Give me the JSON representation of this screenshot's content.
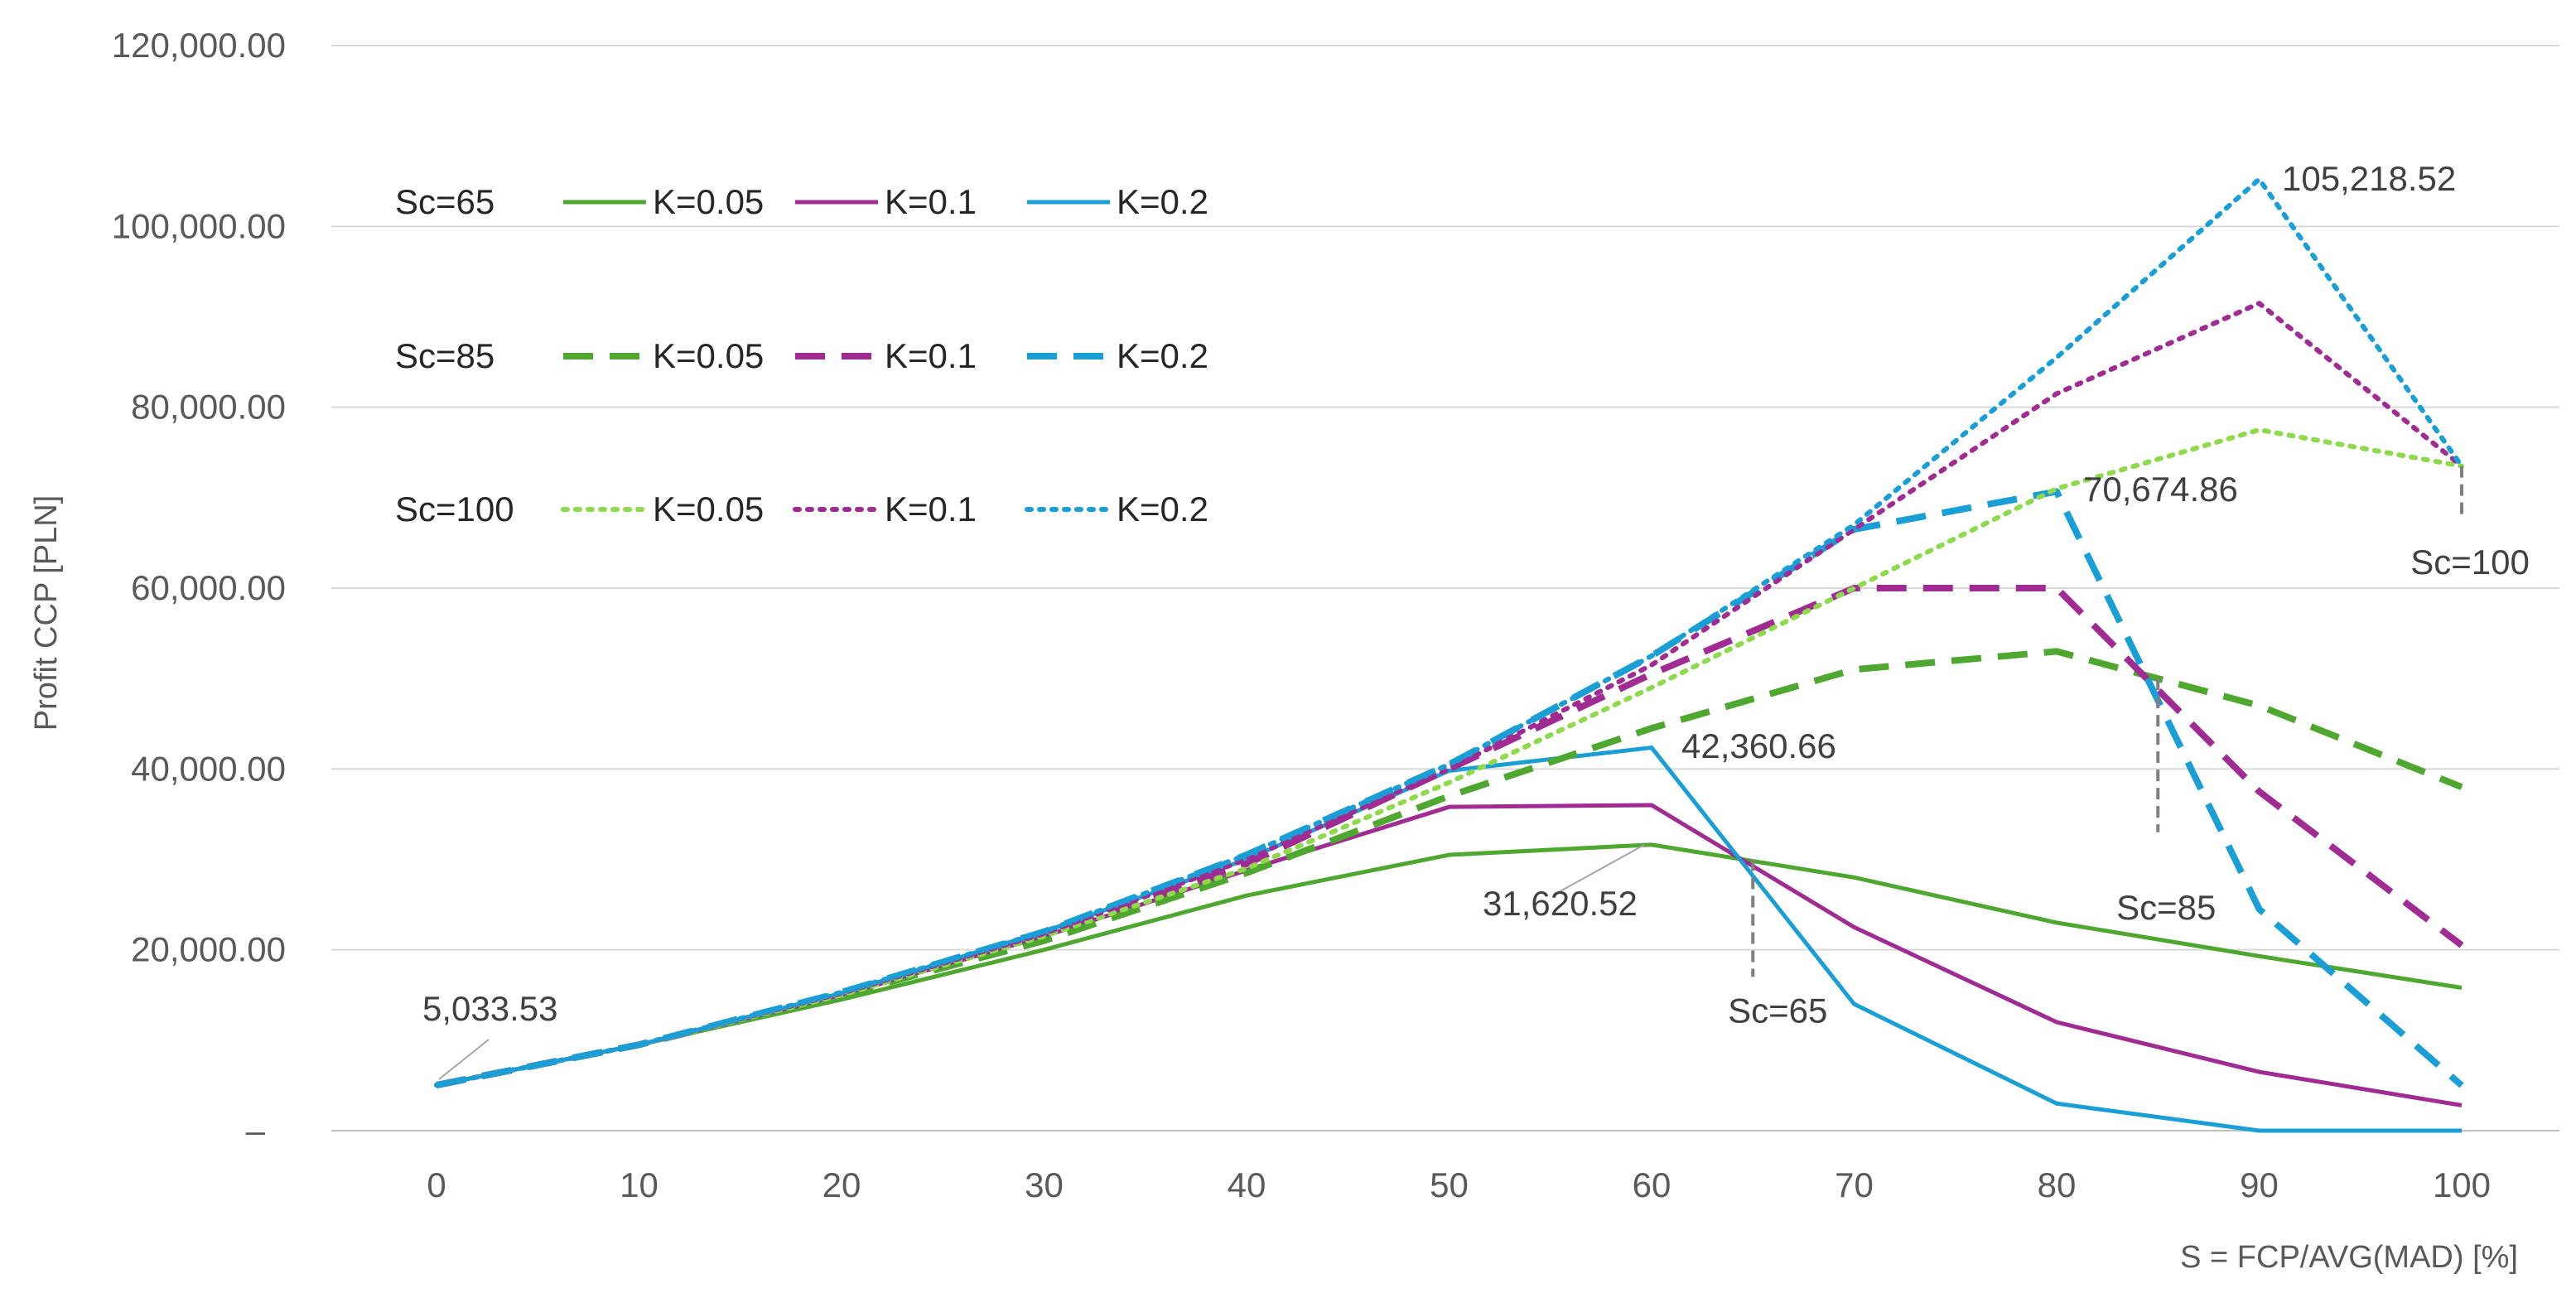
{
  "chart_data": {
    "type": "line",
    "title": "",
    "xlabel": "S = FCP/AVG(MAD) [%]",
    "ylabel": "Profit CCP [PLN]",
    "x": [
      0,
      10,
      20,
      30,
      40,
      50,
      60,
      70,
      80,
      90,
      100
    ],
    "ylim": [
      0,
      120000
    ],
    "y_ticks": [
      {
        "value": 0,
        "label": "–"
      },
      {
        "value": 20000,
        "label": "20,000.00"
      },
      {
        "value": 40000,
        "label": "40,000.00"
      },
      {
        "value": 60000,
        "label": "60,000.00"
      },
      {
        "value": 80000,
        "label": "80,000.00"
      },
      {
        "value": 100000,
        "label": "100,000.00"
      },
      {
        "value": 120000,
        "label": "120,000.00"
      }
    ],
    "x_ticks": [
      "0",
      "10",
      "20",
      "30",
      "40",
      "50",
      "60",
      "70",
      "80",
      "90",
      "100"
    ],
    "grid": "horizontal",
    "legend": {
      "placement": "top-left",
      "groups": [
        {
          "label": "Sc=65",
          "entries": [
            "K=0.05",
            "K=0.1",
            "K=0.2"
          ]
        },
        {
          "label": "Sc=85",
          "entries": [
            "K=0.05",
            "K=0.1",
            "K=0.2"
          ]
        },
        {
          "label": "Sc=100",
          "entries": [
            "K=0.05",
            "K=0.1",
            "K=0.2"
          ]
        }
      ]
    },
    "series": [
      {
        "name": "Sc=65 K=0.05",
        "group": "Sc=65",
        "k": "K=0.05",
        "color": "#4ea72e",
        "style": "solid",
        "values": [
          5033.53,
          9500,
          14500,
          20000,
          26000,
          30500,
          31620.52,
          28000,
          23000,
          19300,
          15800
        ]
      },
      {
        "name": "Sc=65 K=0.1",
        "group": "Sc=65",
        "k": "K=0.1",
        "color": "#a02b93",
        "style": "solid",
        "values": [
          5033.53,
          9500,
          15000,
          21500,
          28800,
          35800,
          36000,
          22500,
          12000,
          6500,
          2800
        ]
      },
      {
        "name": "Sc=65 K=0.2",
        "group": "Sc=65",
        "k": "K=0.2",
        "color": "#1a9ed6",
        "style": "solid",
        "values": [
          5033.53,
          9500,
          15200,
          22000,
          30000,
          39800,
          42360.66,
          14000,
          3000,
          0,
          0
        ]
      },
      {
        "name": "Sc=85 K=0.05",
        "group": "Sc=85",
        "k": "K=0.05",
        "color": "#4ea72e",
        "style": "dashed",
        "values": [
          5033.53,
          9500,
          15000,
          21000,
          28500,
          37000,
          44500,
          51000,
          53000,
          47000,
          38000
        ]
      },
      {
        "name": "Sc=85 K=0.1",
        "group": "Sc=85",
        "k": "K=0.1",
        "color": "#a02b93",
        "style": "dashed",
        "values": [
          5033.53,
          9500,
          15200,
          21700,
          29500,
          40000,
          50500,
          60000,
          60000,
          37500,
          20500
        ]
      },
      {
        "name": "Sc=85 K=0.2",
        "group": "Sc=85",
        "k": "K=0.2",
        "color": "#1a9ed6",
        "style": "dashed",
        "values": [
          5033.53,
          9500,
          15300,
          22000,
          30500,
          40500,
          52500,
          66500,
          70674.86,
          24500,
          5000
        ]
      },
      {
        "name": "Sc=100 K=0.05",
        "group": "Sc=100",
        "k": "K=0.05",
        "color": "#8ed94c",
        "style": "dotted",
        "values": [
          5033.53,
          9500,
          15000,
          21500,
          29000,
          38500,
          49000,
          60000,
          71000,
          77500,
          73500
        ]
      },
      {
        "name": "Sc=100 K=0.1",
        "group": "Sc=100",
        "k": "K=0.1",
        "color": "#a02b93",
        "style": "dotted",
        "values": [
          5033.53,
          9500,
          15200,
          21800,
          30000,
          40000,
          51500,
          66500,
          81500,
          91500,
          73500
        ]
      },
      {
        "name": "Sc=100 K=0.2",
        "group": "Sc=100",
        "k": "K=0.2",
        "color": "#1a9ed6",
        "style": "dotted",
        "values": [
          5033.53,
          9500,
          15300,
          22000,
          30500,
          40500,
          52500,
          67000,
          85500,
          105218.52,
          73500
        ]
      }
    ],
    "annotations": [
      {
        "text": "5,033.53",
        "x": 0,
        "y": 5033.53
      },
      {
        "text": "31,620.52",
        "x": 60,
        "y": 31620.52
      },
      {
        "text": "42,360.66",
        "x": 60,
        "y": 42360.66
      },
      {
        "text": "70,674.86",
        "x": 80,
        "y": 70674.86
      },
      {
        "text": "105,218.52",
        "x": 90,
        "y": 105218.52
      }
    ],
    "threshold_markers": [
      {
        "label": "Sc=65",
        "x": 65,
        "y_from": 30000,
        "y_to": 17000
      },
      {
        "label": "Sc=85",
        "x": 85,
        "y_from": 50000,
        "y_to": 33000
      },
      {
        "label": "Sc=100",
        "x": 100,
        "y_from": 73500,
        "y_to": 67500
      }
    ]
  }
}
